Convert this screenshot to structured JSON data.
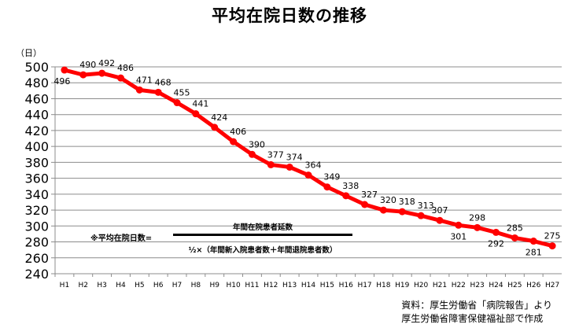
{
  "chart_data": {
    "type": "line",
    "title": "平均在院日数の推移",
    "ylabel": "（日）",
    "xlabel": "",
    "categories": [
      "H1",
      "H2",
      "H3",
      "H4",
      "H5",
      "H6",
      "H7",
      "H8",
      "H9",
      "H10",
      "H11",
      "H12",
      "H13",
      "H14",
      "H15",
      "H16",
      "H17",
      "H18",
      "H19",
      "H20",
      "H21",
      "H22",
      "H23",
      "H24",
      "H25",
      "H26",
      "H27"
    ],
    "series": [
      {
        "values": [
          496,
          490,
          492,
          486,
          471,
          468,
          455,
          441,
          424,
          406,
          390,
          377,
          374,
          364,
          349,
          338,
          327,
          320,
          318,
          313,
          307,
          301,
          298,
          292,
          285,
          281,
          275
        ]
      }
    ],
    "ylim": [
      240,
      500
    ],
    "yticks": [
      240,
      260,
      280,
      300,
      320,
      340,
      360,
      380,
      400,
      420,
      440,
      460,
      480,
      500
    ],
    "grid": true,
    "line_color": "#ff0000",
    "annotation": {
      "label": "※平均在院日数=",
      "numerator": "年間在院患者延数",
      "denominator": "½×（年間新入院患者数＋年間退院患者数）"
    },
    "source": [
      "資料：厚生労働省「病院報告」より",
      "厚生労働省障害保健福祉部で作成"
    ]
  }
}
